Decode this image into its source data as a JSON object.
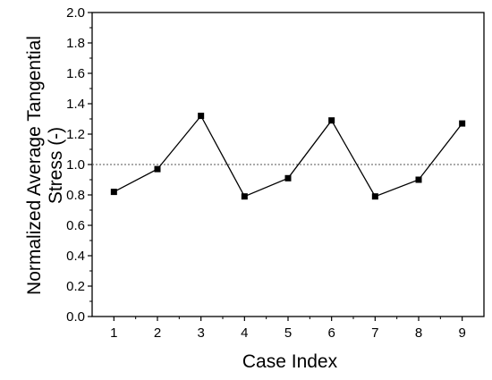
{
  "chart_data": {
    "type": "line",
    "xlabel": "Case Index",
    "ylabel_lines": [
      "Normalized Average Tangential",
      "Stress (-)"
    ],
    "xlim": [
      0.5,
      9.5
    ],
    "ylim": [
      0.0,
      2.0
    ],
    "x": [
      1,
      2,
      3,
      4,
      5,
      6,
      7,
      8,
      9
    ],
    "y": [
      0.82,
      0.97,
      1.32,
      0.79,
      0.91,
      1.29,
      0.79,
      0.9,
      1.27
    ],
    "x_ticks": [
      "1",
      "2",
      "3",
      "4",
      "5",
      "6",
      "7",
      "8",
      "9"
    ],
    "y_ticks": [
      "0.0",
      "0.2",
      "0.4",
      "0.6",
      "0.8",
      "1.0",
      "1.2",
      "1.4",
      "1.6",
      "1.8",
      "2.0"
    ],
    "reference_line": {
      "y": 1.0,
      "style": "dotted"
    },
    "marker": "square",
    "grid": false,
    "line_color": "#000000",
    "marker_color": "#000000"
  }
}
